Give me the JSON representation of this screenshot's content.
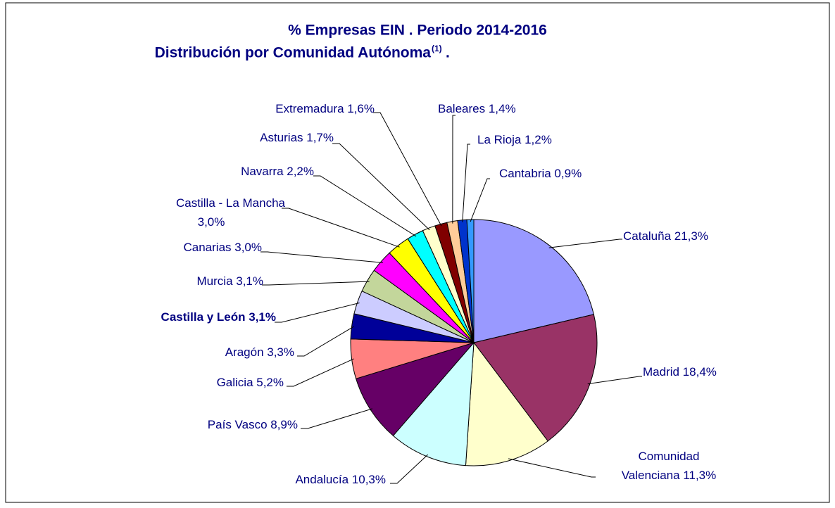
{
  "chart_data": {
    "type": "pie",
    "title": [
      "% Empresas EIN . Periodo 2014-2016",
      "Distribución por Comunidad Autónoma"
    ],
    "title_note": "(1)",
    "title_suffix": ".",
    "labels": [
      [
        "Cataluña 21,3%"
      ],
      [
        "Madrid 18,4%"
      ],
      [
        "Comunidad",
        "Valenciana 11,3%"
      ],
      [
        "Andalucía 10,3%"
      ],
      [
        "País Vasco 8,9%"
      ],
      [
        "Galicia 5,2%"
      ],
      [
        "Aragón 3,3%"
      ],
      [
        "Castilla y León 3,1%"
      ],
      [
        "Murcia 3,1%"
      ],
      [
        "Canarias 3,0%"
      ],
      [
        "Castilla - La Mancha",
        "3,0%"
      ],
      [
        "Navarra 2,2%"
      ],
      [
        "Asturias 1,7%"
      ],
      [
        "Extremadura 1,6%"
      ],
      [
        "Baleares 1,4%"
      ],
      [
        "La Rioja 1,2%"
      ],
      [
        "Cantabria 0,9%"
      ]
    ],
    "values": [
      21.3,
      18.4,
      11.3,
      10.3,
      8.9,
      5.2,
      3.3,
      3.1,
      3.1,
      3.0,
      3.0,
      2.2,
      1.7,
      1.6,
      1.4,
      1.2,
      0.9
    ],
    "colors": [
      "#9999ff",
      "#993366",
      "#ffffcc",
      "#ccffff",
      "#660066",
      "#ff8080",
      "#000099",
      "#ccccff",
      "#c3d69b",
      "#ff00ff",
      "#ffff00",
      "#00ffff",
      "#ffffcc",
      "#800000",
      "#ffcc99",
      "#0033cc",
      "#3399ff"
    ],
    "highlight": 7
  }
}
